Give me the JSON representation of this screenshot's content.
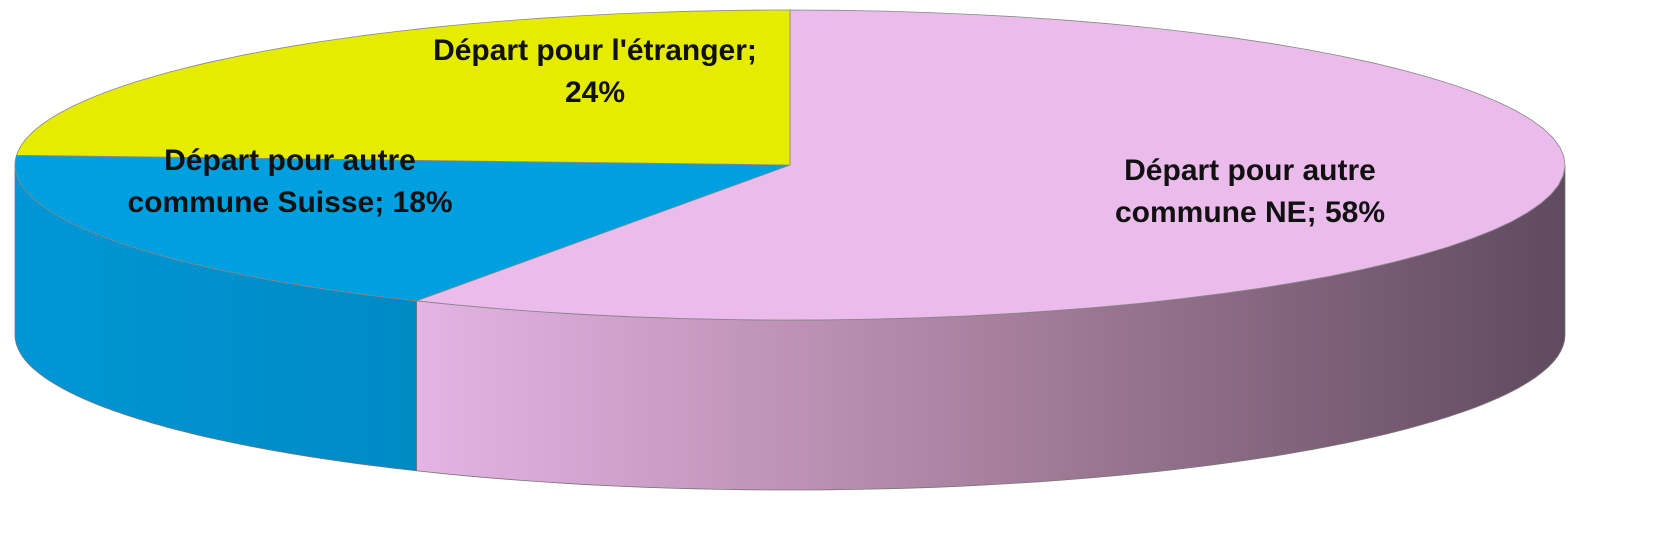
{
  "chart_data": {
    "type": "pie3d",
    "values": [
      58,
      18,
      24
    ],
    "value_labels": [
      "Départ pour autre commune NE; 58%",
      "Départ pour autre commune Suisse; 18%",
      "Départ pour l'étranger; 24%"
    ],
    "colors": [
      "#ebbbeb",
      "#009fdf",
      "#e6ec00"
    ]
  }
}
